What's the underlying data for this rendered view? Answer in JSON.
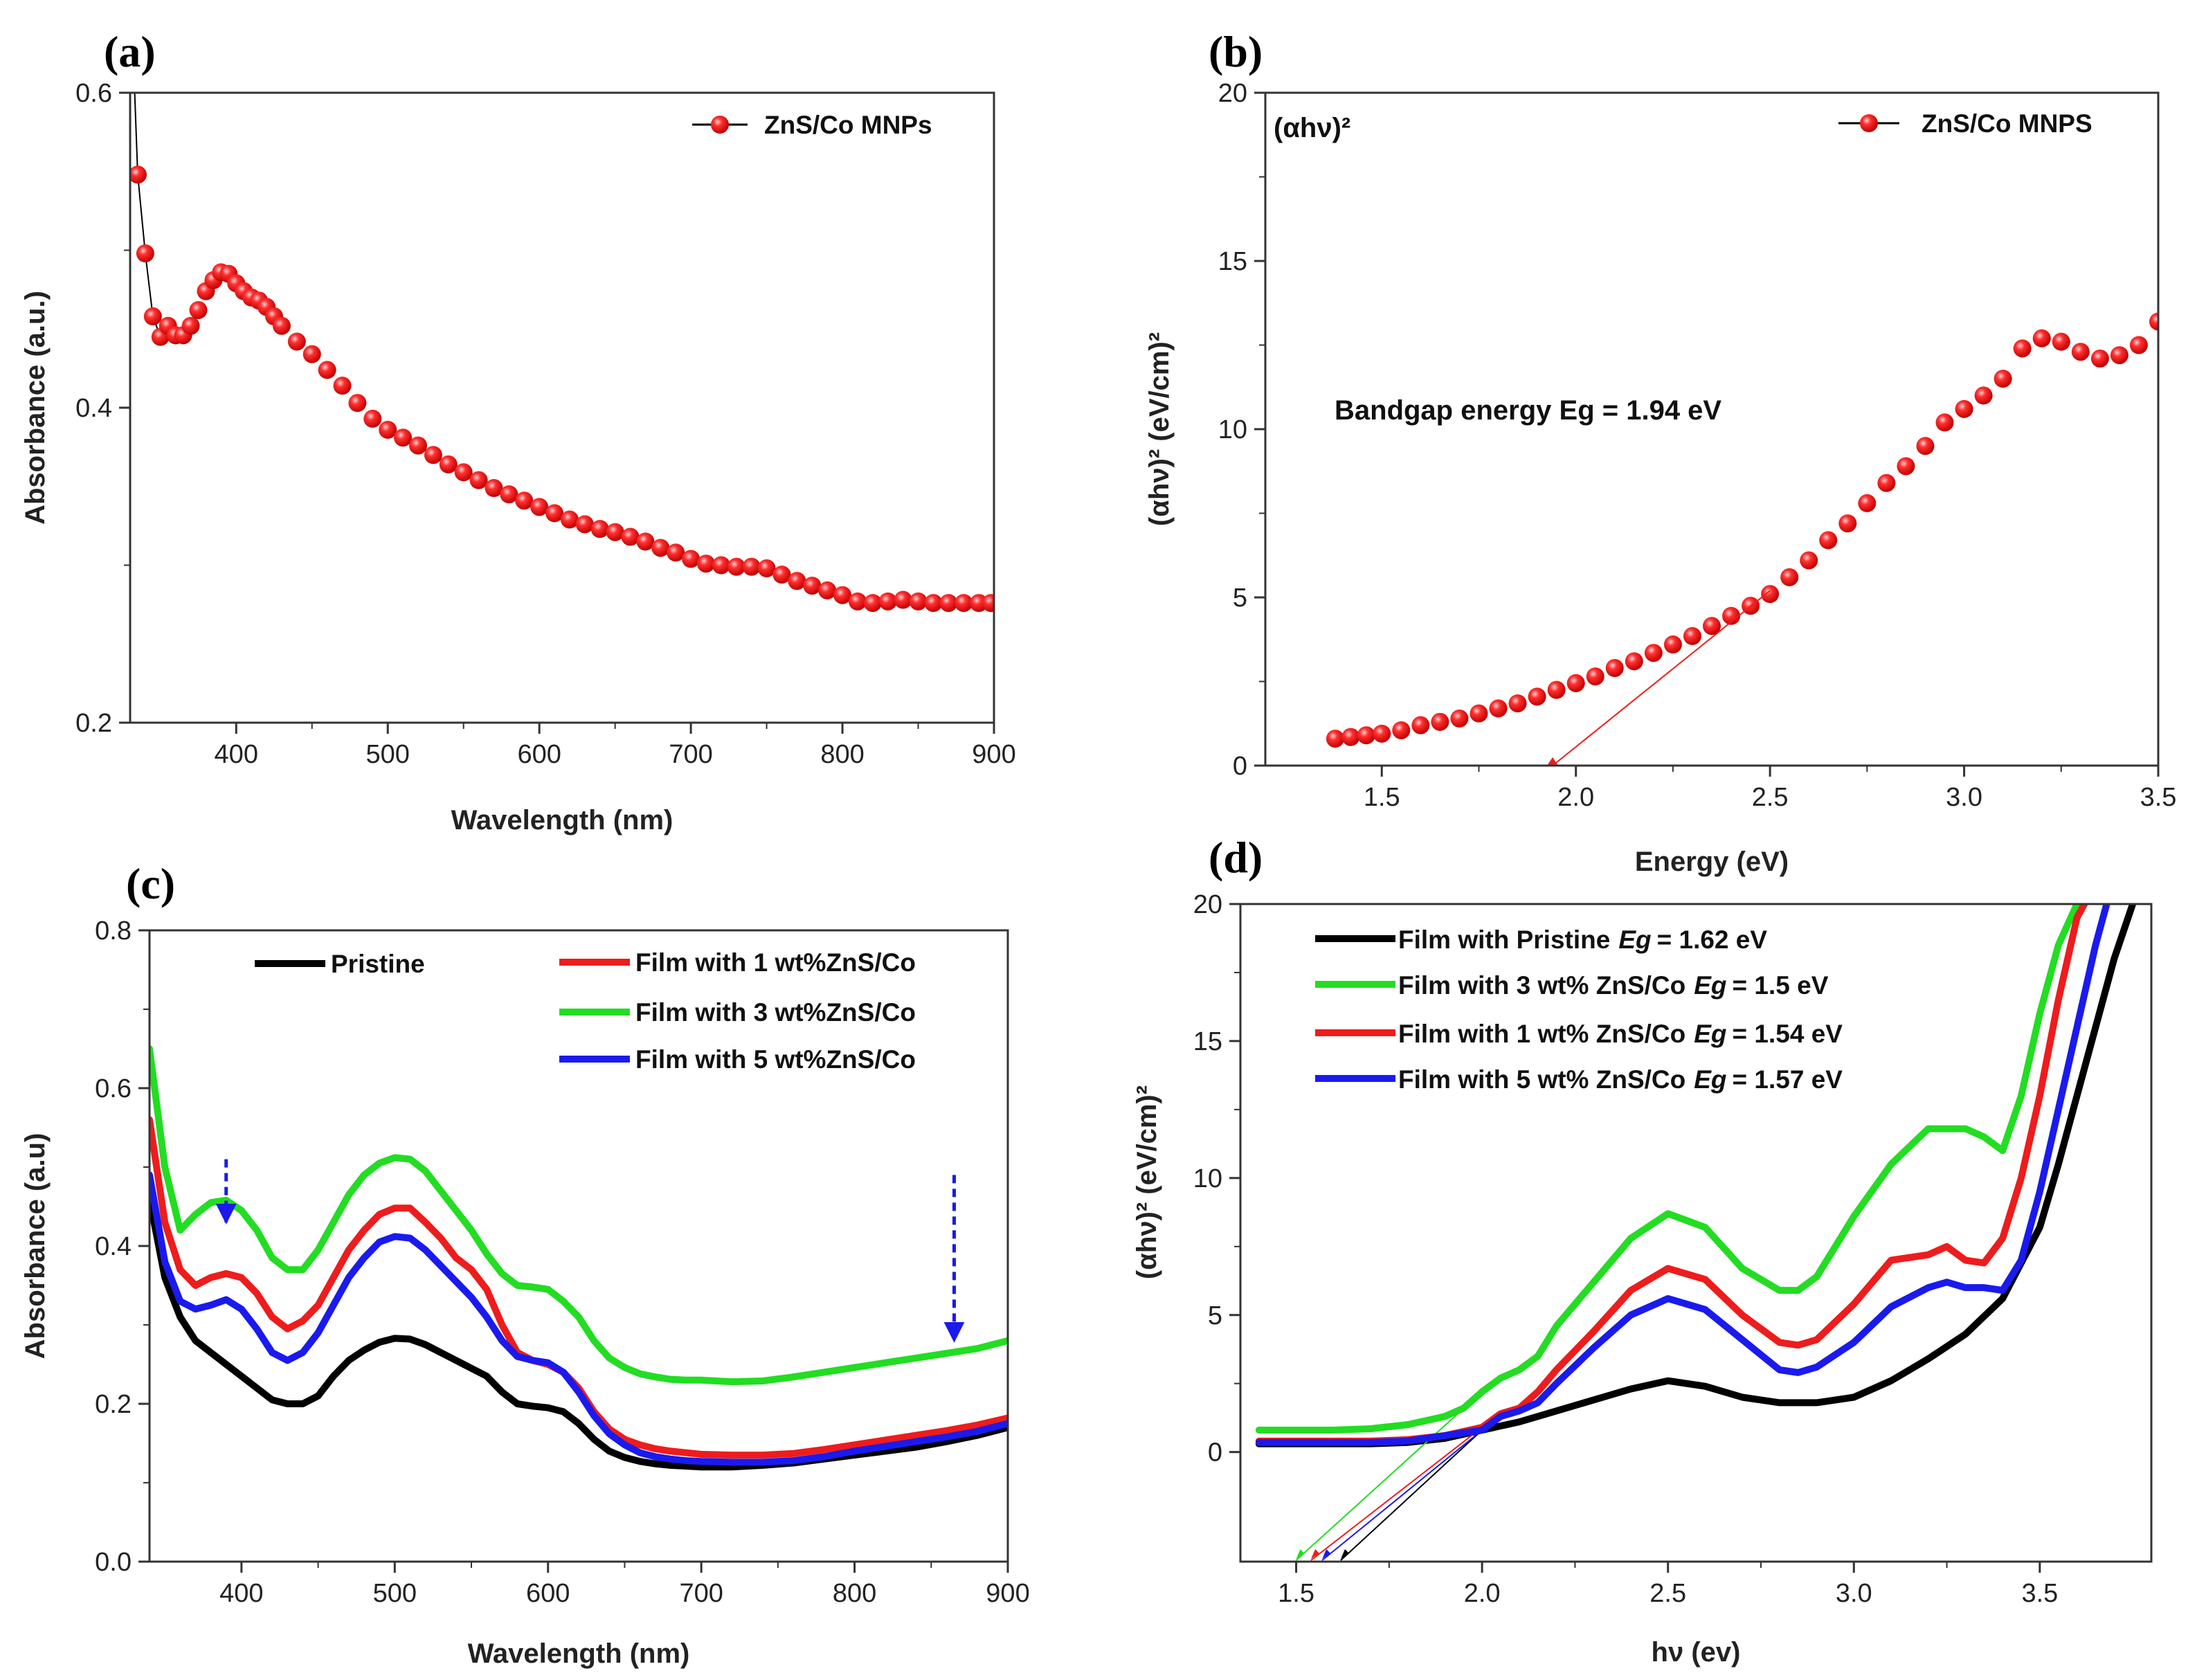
{
  "chart_data": [
    {
      "id": "a",
      "type": "scatter",
      "panel_label": "(a)",
      "xlabel": "Wavelength (nm)",
      "ylabel": "Absorbance (a.u.)",
      "xlim": [
        330,
        900
      ],
      "ylim": [
        0.2,
        0.6
      ],
      "xticks": [
        400,
        500,
        600,
        700,
        800,
        900
      ],
      "yticks": [
        0.2,
        0.4,
        0.6
      ],
      "series": [
        {
          "name": "ZnS/Co MNPs",
          "color": "#ee1c1c",
          "marker": "circle",
          "x": [
            335,
            340,
            345,
            350,
            355,
            360,
            365,
            370,
            375,
            380,
            385,
            390,
            395,
            400,
            405,
            410,
            415,
            420,
            425,
            430,
            440,
            450,
            460,
            470,
            480,
            490,
            500,
            510,
            520,
            530,
            540,
            550,
            560,
            570,
            580,
            590,
            600,
            610,
            620,
            630,
            640,
            650,
            660,
            670,
            680,
            690,
            700,
            710,
            720,
            730,
            740,
            750,
            760,
            770,
            780,
            790,
            800,
            810,
            820,
            830,
            840,
            850,
            860,
            870,
            880,
            890,
            898
          ],
          "y": [
            0.548,
            0.498,
            0.458,
            0.445,
            0.452,
            0.446,
            0.446,
            0.452,
            0.462,
            0.474,
            0.481,
            0.486,
            0.485,
            0.479,
            0.474,
            0.47,
            0.468,
            0.464,
            0.458,
            0.452,
            0.442,
            0.434,
            0.424,
            0.414,
            0.403,
            0.393,
            0.386,
            0.381,
            0.376,
            0.37,
            0.364,
            0.359,
            0.354,
            0.349,
            0.345,
            0.341,
            0.337,
            0.333,
            0.329,
            0.326,
            0.323,
            0.321,
            0.318,
            0.315,
            0.311,
            0.308,
            0.304,
            0.301,
            0.3,
            0.299,
            0.299,
            0.298,
            0.294,
            0.29,
            0.287,
            0.284,
            0.281,
            0.277,
            0.276,
            0.277,
            0.278,
            0.277,
            0.276,
            0.276,
            0.276,
            0.276,
            0.276
          ]
        }
      ]
    },
    {
      "id": "b",
      "type": "scatter",
      "panel_label": "(b)",
      "xlabel": "Energy (eV)",
      "ylabel": "(αhν)² (eV/cm)²",
      "corner_label": "(αhν)²",
      "annotation": "Bandgap energy Eg = 1.94 eV",
      "xlim": [
        1.2,
        3.5
      ],
      "ylim": [
        0,
        20
      ],
      "xticks": [
        1.5,
        2.0,
        2.5,
        3.0,
        3.5
      ],
      "yticks": [
        0,
        5,
        10,
        15,
        20
      ],
      "tangent": {
        "from": [
          1.94,
          0
        ],
        "to": [
          2.5,
          5.2
        ]
      },
      "series": [
        {
          "name": "ZnS/Co MNPS",
          "color": "#ee1c1c",
          "marker": "circle",
          "x": [
            1.38,
            1.42,
            1.46,
            1.5,
            1.55,
            1.6,
            1.65,
            1.7,
            1.75,
            1.8,
            1.85,
            1.9,
            1.95,
            2.0,
            2.05,
            2.1,
            2.15,
            2.2,
            2.25,
            2.3,
            2.35,
            2.4,
            2.45,
            2.5,
            2.55,
            2.6,
            2.65,
            2.7,
            2.75,
            2.8,
            2.85,
            2.9,
            2.95,
            3.0,
            3.05,
            3.1,
            3.15,
            3.2,
            3.25,
            3.3,
            3.35,
            3.4,
            3.45,
            3.5
          ],
          "y": [
            0.8,
            0.85,
            0.9,
            0.95,
            1.05,
            1.2,
            1.3,
            1.4,
            1.55,
            1.7,
            1.85,
            2.05,
            2.25,
            2.45,
            2.65,
            2.9,
            3.1,
            3.35,
            3.6,
            3.85,
            4.15,
            4.45,
            4.75,
            5.1,
            5.6,
            6.1,
            6.7,
            7.2,
            7.8,
            8.4,
            8.9,
            9.5,
            10.2,
            10.6,
            11.0,
            11.5,
            12.4,
            12.7,
            12.6,
            12.3,
            12.1,
            12.2,
            12.5,
            13.2
          ]
        }
      ]
    },
    {
      "id": "c",
      "type": "line",
      "panel_label": "(c)",
      "xlabel": "Wavelength (nm)",
      "ylabel": "Absorbance (a.u)",
      "xlim": [
        340,
        900
      ],
      "ylim": [
        0.0,
        0.8
      ],
      "xticks": [
        400,
        500,
        600,
        700,
        800,
        900
      ],
      "yticks": [
        0.0,
        0.2,
        0.4,
        0.6,
        0.8
      ],
      "arrows": [
        {
          "x": 390,
          "y_from": 0.51,
          "y_to": 0.43
        },
        {
          "x": 865,
          "y_from": 0.49,
          "y_to": 0.28
        }
      ],
      "series": [
        {
          "name": "Pristine",
          "color": "#000000",
          "x": [
            340,
            350,
            360,
            370,
            380,
            390,
            400,
            410,
            420,
            430,
            440,
            450,
            460,
            470,
            480,
            490,
            500,
            510,
            520,
            530,
            540,
            550,
            560,
            570,
            580,
            590,
            600,
            610,
            620,
            630,
            640,
            650,
            660,
            670,
            680,
            690,
            700,
            720,
            740,
            760,
            780,
            800,
            820,
            840,
            860,
            880,
            900
          ],
          "y": [
            0.46,
            0.36,
            0.31,
            0.28,
            0.265,
            0.25,
            0.235,
            0.22,
            0.205,
            0.2,
            0.2,
            0.21,
            0.235,
            0.255,
            0.268,
            0.278,
            0.283,
            0.282,
            0.275,
            0.265,
            0.255,
            0.245,
            0.235,
            0.215,
            0.2,
            0.197,
            0.195,
            0.19,
            0.175,
            0.155,
            0.14,
            0.132,
            0.127,
            0.124,
            0.122,
            0.121,
            0.12,
            0.12,
            0.122,
            0.125,
            0.13,
            0.135,
            0.14,
            0.145,
            0.152,
            0.16,
            0.17
          ]
        },
        {
          "name": "Film with 1 wt%ZnS/Co",
          "color": "#ee1c1c",
          "x": [
            340,
            350,
            360,
            370,
            380,
            390,
            400,
            410,
            420,
            430,
            440,
            450,
            460,
            470,
            480,
            490,
            500,
            510,
            520,
            530,
            540,
            550,
            560,
            570,
            580,
            590,
            600,
            610,
            620,
            630,
            640,
            650,
            660,
            670,
            680,
            690,
            700,
            720,
            740,
            760,
            780,
            800,
            820,
            840,
            860,
            880,
            900
          ],
          "y": [
            0.56,
            0.43,
            0.37,
            0.35,
            0.36,
            0.365,
            0.36,
            0.34,
            0.31,
            0.295,
            0.305,
            0.325,
            0.36,
            0.395,
            0.42,
            0.44,
            0.448,
            0.448,
            0.43,
            0.41,
            0.385,
            0.37,
            0.345,
            0.3,
            0.265,
            0.255,
            0.25,
            0.24,
            0.22,
            0.19,
            0.168,
            0.155,
            0.148,
            0.143,
            0.14,
            0.138,
            0.136,
            0.135,
            0.135,
            0.137,
            0.142,
            0.148,
            0.154,
            0.16,
            0.166,
            0.173,
            0.182
          ]
        },
        {
          "name": "Film with 3 wt%ZnS/Co",
          "color": "#22dd22",
          "x": [
            340,
            350,
            360,
            370,
            380,
            390,
            400,
            410,
            420,
            430,
            440,
            450,
            460,
            470,
            480,
            490,
            500,
            510,
            520,
            530,
            540,
            550,
            560,
            570,
            580,
            590,
            600,
            610,
            620,
            630,
            640,
            650,
            660,
            670,
            680,
            690,
            700,
            720,
            740,
            760,
            780,
            800,
            820,
            840,
            860,
            880,
            900
          ],
          "y": [
            0.65,
            0.5,
            0.42,
            0.44,
            0.455,
            0.458,
            0.445,
            0.42,
            0.385,
            0.37,
            0.37,
            0.395,
            0.43,
            0.465,
            0.49,
            0.505,
            0.512,
            0.51,
            0.495,
            0.47,
            0.445,
            0.42,
            0.39,
            0.365,
            0.35,
            0.348,
            0.345,
            0.33,
            0.31,
            0.28,
            0.258,
            0.246,
            0.238,
            0.234,
            0.231,
            0.23,
            0.23,
            0.228,
            0.229,
            0.234,
            0.24,
            0.246,
            0.252,
            0.258,
            0.264,
            0.27,
            0.28
          ]
        },
        {
          "name": "Film with 5 wt%ZnS/Co",
          "color": "#1a1aee",
          "x": [
            340,
            350,
            360,
            370,
            380,
            390,
            400,
            410,
            420,
            430,
            440,
            450,
            460,
            470,
            480,
            490,
            500,
            510,
            520,
            530,
            540,
            550,
            560,
            570,
            580,
            590,
            600,
            610,
            620,
            630,
            640,
            650,
            660,
            670,
            680,
            690,
            700,
            720,
            740,
            760,
            780,
            800,
            820,
            840,
            860,
            880,
            900
          ],
          "y": [
            0.49,
            0.38,
            0.33,
            0.32,
            0.325,
            0.332,
            0.32,
            0.295,
            0.265,
            0.255,
            0.265,
            0.29,
            0.325,
            0.36,
            0.385,
            0.405,
            0.412,
            0.41,
            0.395,
            0.375,
            0.355,
            0.335,
            0.31,
            0.28,
            0.26,
            0.255,
            0.252,
            0.24,
            0.215,
            0.185,
            0.162,
            0.148,
            0.138,
            0.133,
            0.13,
            0.128,
            0.127,
            0.126,
            0.126,
            0.128,
            0.133,
            0.14,
            0.146,
            0.152,
            0.158,
            0.165,
            0.175
          ]
        }
      ]
    },
    {
      "id": "d",
      "type": "line",
      "panel_label": "(d)",
      "xlabel": "hν (ev)",
      "ylabel": "(αhν)² (eV/cm)²",
      "xlim": [
        1.35,
        3.8
      ],
      "ylim": [
        -4,
        20
      ],
      "xticks": [
        1.5,
        2.0,
        2.5,
        3.0,
        3.5
      ],
      "yticks": [
        0,
        5,
        10,
        15,
        20
      ],
      "series": [
        {
          "name": "Film with Pristine",
          "eg_label": "Eg",
          "eg_value": "= 1.62 eV",
          "eg": 1.62,
          "color": "#000000",
          "x": [
            1.4,
            1.5,
            1.6,
            1.7,
            1.8,
            1.9,
            2.0,
            2.1,
            2.2,
            2.3,
            2.4,
            2.5,
            2.6,
            2.7,
            2.8,
            2.9,
            3.0,
            3.1,
            3.2,
            3.3,
            3.4,
            3.5,
            3.55,
            3.6,
            3.65,
            3.7,
            3.75
          ],
          "y": [
            0.3,
            0.3,
            0.3,
            0.3,
            0.35,
            0.5,
            0.8,
            1.1,
            1.5,
            1.9,
            2.3,
            2.6,
            2.4,
            2.0,
            1.8,
            1.8,
            2.0,
            2.6,
            3.4,
            4.3,
            5.6,
            8.2,
            10.5,
            13.0,
            15.5,
            18.0,
            20.0
          ]
        },
        {
          "name": "Film with 3 wt% ZnS/Co",
          "eg_label": "Eg",
          "eg_value": "= 1.5 eV",
          "eg": 1.5,
          "color": "#22dd22",
          "x": [
            1.4,
            1.5,
            1.6,
            1.7,
            1.8,
            1.9,
            1.95,
            2.0,
            2.05,
            2.1,
            2.15,
            2.2,
            2.3,
            2.4,
            2.5,
            2.6,
            2.7,
            2.8,
            2.85,
            2.9,
            3.0,
            3.1,
            3.2,
            3.3,
            3.35,
            3.4,
            3.45,
            3.5,
            3.55,
            3.6
          ],
          "y": [
            0.8,
            0.8,
            0.8,
            0.85,
            1.0,
            1.3,
            1.6,
            2.2,
            2.7,
            3.0,
            3.5,
            4.6,
            6.2,
            7.8,
            8.7,
            8.2,
            6.7,
            5.9,
            5.9,
            6.4,
            8.6,
            10.5,
            11.8,
            11.8,
            11.5,
            11.0,
            13.0,
            16.0,
            18.5,
            20.0
          ]
        },
        {
          "name": "Film with 1 wt% ZnS/Co",
          "eg_label": "Eg",
          "eg_value": "= 1.54 eV",
          "eg": 1.54,
          "color": "#ee1c1c",
          "x": [
            1.4,
            1.5,
            1.6,
            1.7,
            1.8,
            1.9,
            2.0,
            2.05,
            2.1,
            2.15,
            2.2,
            2.3,
            2.4,
            2.5,
            2.6,
            2.7,
            2.8,
            2.85,
            2.9,
            3.0,
            3.1,
            3.2,
            3.25,
            3.3,
            3.35,
            3.4,
            3.45,
            3.5,
            3.55,
            3.6,
            3.62
          ],
          "y": [
            0.4,
            0.4,
            0.4,
            0.4,
            0.45,
            0.6,
            0.9,
            1.4,
            1.6,
            2.2,
            3.0,
            4.4,
            5.9,
            6.7,
            6.3,
            5.0,
            4.0,
            3.9,
            4.1,
            5.4,
            7.0,
            7.2,
            7.5,
            7.0,
            6.9,
            7.8,
            10.0,
            13.0,
            16.5,
            19.5,
            20.0
          ]
        },
        {
          "name": "Film with 5 wt% ZnS/Co",
          "eg_label": "Eg",
          "eg_value": "= 1.57 eV",
          "eg": 1.57,
          "color": "#1a1aee",
          "x": [
            1.4,
            1.5,
            1.6,
            1.7,
            1.8,
            1.9,
            2.0,
            2.05,
            2.1,
            2.15,
            2.2,
            2.3,
            2.4,
            2.5,
            2.6,
            2.7,
            2.8,
            2.85,
            2.9,
            3.0,
            3.1,
            3.2,
            3.25,
            3.3,
            3.35,
            3.4,
            3.45,
            3.5,
            3.55,
            3.6,
            3.65,
            3.68
          ],
          "y": [
            0.35,
            0.35,
            0.35,
            0.35,
            0.4,
            0.6,
            0.8,
            1.3,
            1.5,
            1.8,
            2.5,
            3.8,
            5.0,
            5.6,
            5.2,
            4.1,
            3.0,
            2.9,
            3.1,
            4.0,
            5.3,
            6.0,
            6.2,
            6.0,
            6.0,
            5.9,
            7.0,
            9.5,
            12.5,
            15.5,
            18.5,
            20.0
          ]
        }
      ]
    }
  ]
}
